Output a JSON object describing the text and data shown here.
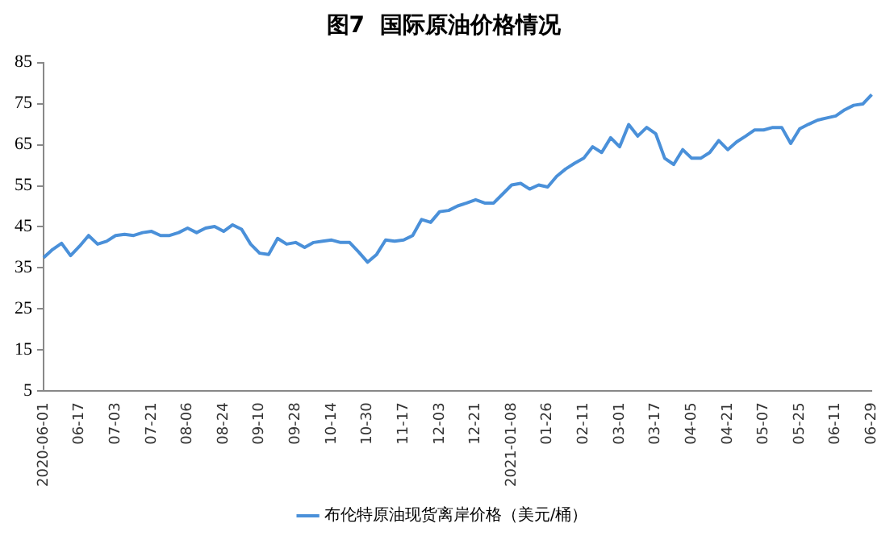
{
  "chart_data": {
    "type": "line",
    "title": "图7  国际原油价格情况",
    "categories": [
      "2020-06-01",
      null,
      null,
      null,
      "06-17",
      null,
      null,
      null,
      "07-03",
      null,
      null,
      null,
      "07-21",
      null,
      null,
      null,
      "08-06",
      null,
      null,
      null,
      "08-24",
      null,
      null,
      null,
      "09-10",
      null,
      null,
      null,
      "09-28",
      null,
      null,
      null,
      "10-14",
      null,
      null,
      null,
      "10-30",
      null,
      null,
      null,
      "11-17",
      null,
      null,
      null,
      "12-03",
      null,
      null,
      null,
      "12-21",
      null,
      null,
      null,
      "2021-01-08",
      null,
      null,
      null,
      "01-26",
      null,
      null,
      null,
      "02-11",
      null,
      null,
      null,
      "03-01",
      null,
      null,
      null,
      "03-17",
      null,
      null,
      null,
      "04-05",
      null,
      null,
      null,
      "04-21",
      null,
      null,
      null,
      "05-07",
      null,
      null,
      null,
      "05-25",
      null,
      null,
      null,
      "06-11",
      null,
      null,
      null,
      "06-29"
    ],
    "series": [
      {
        "name": "布伦特原油现货离岸价格（美元/桶）",
        "color": "#4a90d9",
        "values": [
          37.5,
          39.5,
          41,
          38,
          40.3,
          42.9,
          40.8,
          41.5,
          42.9,
          43.2,
          42.9,
          43.6,
          43.9,
          42.9,
          42.9,
          43.6,
          44.7,
          43.6,
          44.7,
          45.1,
          43.9,
          45.5,
          44.4,
          40.8,
          38.6,
          38.3,
          42.2,
          40.8,
          41.2,
          40.0,
          41.2,
          41.5,
          41.8,
          41.2,
          41.2,
          38.9,
          36.4,
          38.3,
          41.8,
          41.5,
          41.8,
          42.9,
          46.8,
          46.1,
          48.7,
          49.0,
          50.1,
          50.8,
          51.6,
          50.8,
          50.8,
          53.0,
          55.2,
          55.6,
          54.2,
          55.2,
          54.7,
          57.3,
          59.1,
          60.5,
          61.7,
          64.5,
          63.1,
          66.7,
          64.5,
          69.9,
          67.1,
          69.2,
          67.7,
          61.7,
          60.2,
          63.8,
          61.7,
          61.7,
          63.1,
          66.0,
          63.8,
          65.7,
          67.1,
          68.6,
          68.6,
          69.2,
          69.2,
          65.3,
          68.9,
          70.0,
          71.0,
          71.5,
          72.0,
          73.5,
          74.6,
          74.9,
          77.2
        ]
      }
    ],
    "ylim": [
      5,
      85
    ],
    "yticks": [
      5,
      15,
      25,
      35,
      45,
      55,
      65,
      75,
      85
    ],
    "grid": false,
    "legend": "bottom",
    "marker": "none",
    "line_style": "solid"
  }
}
